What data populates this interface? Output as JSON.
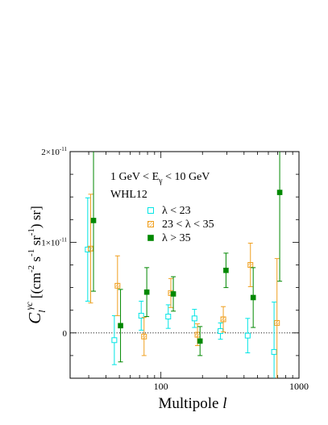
{
  "chart_data": {
    "type": "scatter",
    "title": "",
    "xlabel": {
      "main": "Multipole",
      "symbol": "l"
    },
    "ylabel": {
      "symbol": "C",
      "sub": "l",
      "sup": "γc",
      "bracket_open": "[(cm",
      "exp1": "-2",
      "part_s": "s",
      "exp2": "-1",
      "part_sr": "sr",
      "exp3": "-1",
      "bracket_close": ") sr]"
    },
    "x_scale": "log",
    "xlim": [
      22,
      1000
    ],
    "ylim": [
      -5e-12,
      2e-11
    ],
    "x_ticks": [
      {
        "value": 100,
        "label": "100"
      },
      {
        "value": 1000,
        "label": "1000"
      }
    ],
    "y_ticks": [
      {
        "value": 0,
        "label_main": "0",
        "label_exp": ""
      },
      {
        "value": 1e-11,
        "label_main": "1×10",
        "label_exp": "-11"
      },
      {
        "value": 2e-11,
        "label_main": "2×10",
        "label_exp": "-11"
      }
    ],
    "zero_line": true,
    "annotations": [
      {
        "id": "energy",
        "main": "1 GeV < E",
        "sub": "γ",
        "tail": " < 10 GeV"
      },
      {
        "id": "catalog",
        "main": "WHL12",
        "sub": "",
        "tail": ""
      }
    ],
    "series": [
      {
        "name": "λ < 23",
        "color": "#00e5e5",
        "marker": "open-square",
        "points": [
          {
            "x": 29.5,
            "y": 9.2e-12,
            "err_lo": 5.7e-12,
            "err_hi": 5.7e-12
          },
          {
            "x": 46,
            "y": -8e-13,
            "err_lo": 2.7e-12,
            "err_hi": 2.7e-12
          },
          {
            "x": 72,
            "y": 1.9e-12,
            "err_lo": 1.6e-12,
            "err_hi": 1.6e-12
          },
          {
            "x": 113,
            "y": 1.8e-12,
            "err_lo": 1.3e-12,
            "err_hi": 1.3e-12
          },
          {
            "x": 175,
            "y": 1.6e-12,
            "err_lo": 1e-12,
            "err_hi": 1e-12
          },
          {
            "x": 270,
            "y": 2e-13,
            "err_lo": 9e-13,
            "err_hi": 9e-13
          },
          {
            "x": 425,
            "y": -3e-13,
            "err_lo": 1.9e-12,
            "err_hi": 1.9e-12
          },
          {
            "x": 660,
            "y": -2.1e-12,
            "err_lo": 5.5e-12,
            "err_hi": 5.5e-12
          }
        ]
      },
      {
        "name": "23 < λ < 35",
        "color": "#f0a020",
        "marker": "hatched-square",
        "points": [
          {
            "x": 31,
            "y": 9.3e-12,
            "err_lo": 6e-12,
            "err_hi": 6e-12
          },
          {
            "x": 48.5,
            "y": 5.2e-12,
            "err_lo": 3.3e-12,
            "err_hi": 3.3e-12
          },
          {
            "x": 75.5,
            "y": -4e-13,
            "err_lo": 2.1e-12,
            "err_hi": 2.1e-12
          },
          {
            "x": 118,
            "y": 4.4e-12,
            "err_lo": 1.6e-12,
            "err_hi": 1.6e-12
          },
          {
            "x": 184,
            "y": -2e-13,
            "err_lo": 1.2e-12,
            "err_hi": 1.2e-12
          },
          {
            "x": 283,
            "y": 1.5e-12,
            "err_lo": 1.4e-12,
            "err_hi": 1.4e-12
          },
          {
            "x": 445,
            "y": 7.5e-12,
            "err_lo": 2.4e-12,
            "err_hi": 2.4e-12
          },
          {
            "x": 693,
            "y": 1.1e-12,
            "err_lo": 7.1e-12,
            "err_hi": 7.1e-12
          }
        ]
      },
      {
        "name": "λ > 35",
        "color": "#008800",
        "marker": "filled-square",
        "points": [
          {
            "x": 32.5,
            "y": 1.24e-11,
            "err_lo": 7.8e-12,
            "err_hi": 7.8e-12
          },
          {
            "x": 51,
            "y": 8e-13,
            "err_lo": 4e-12,
            "err_hi": 4e-12
          },
          {
            "x": 79,
            "y": 4.5e-12,
            "err_lo": 2.7e-12,
            "err_hi": 2.7e-12
          },
          {
            "x": 123,
            "y": 4.3e-12,
            "err_lo": 1.9e-12,
            "err_hi": 1.9e-12
          },
          {
            "x": 192,
            "y": -9e-13,
            "err_lo": 1.6e-12,
            "err_hi": 1.6e-12
          },
          {
            "x": 296,
            "y": 6.9e-12,
            "err_lo": 1.9e-12,
            "err_hi": 1.9e-12
          },
          {
            "x": 466,
            "y": 3.9e-12,
            "err_lo": 3.3e-12,
            "err_hi": 3.3e-12
          },
          {
            "x": 725,
            "y": 1.55e-11,
            "err_lo": 9.8e-12,
            "err_hi": 9.8e-12
          }
        ]
      }
    ],
    "legend": {
      "placement": "inside-upper-middle"
    }
  }
}
